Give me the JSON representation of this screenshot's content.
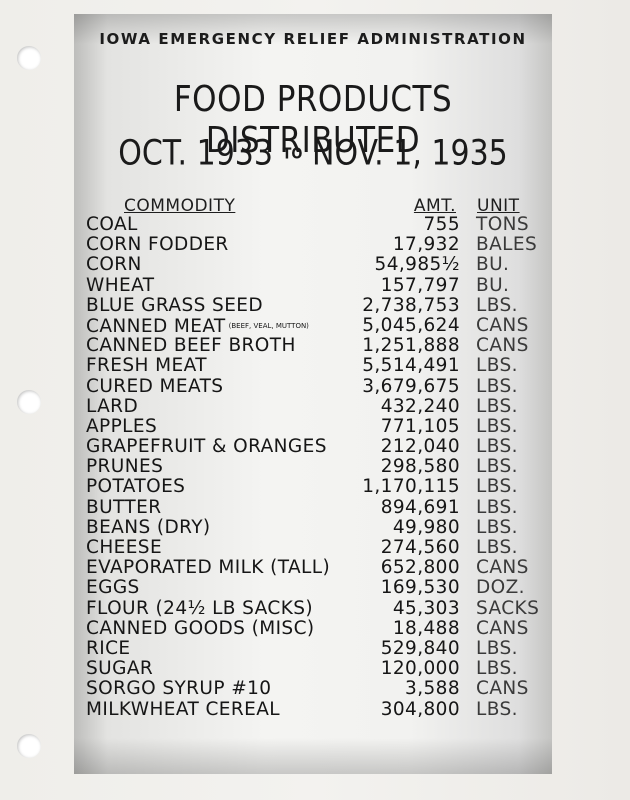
{
  "document": {
    "agency": "IOWA EMERGENCY RELIEF ADMINISTRATION",
    "title": "FOOD PRODUCTS DISTRIBUTED",
    "date_from": "OCT. 1933",
    "date_to_word": "TO",
    "date_to": "NOV. 1, 1935",
    "columns": {
      "commodity": "COMMODITY",
      "amount": "AMT.",
      "unit": "UNIT"
    },
    "rows": [
      {
        "commodity": "COAL",
        "note": "",
        "amount": "755",
        "unit": "TONS"
      },
      {
        "commodity": "CORN FODDER",
        "note": "",
        "amount": "17,932",
        "unit": "BALES"
      },
      {
        "commodity": "CORN",
        "note": "",
        "amount": "54,985½",
        "unit": "BU."
      },
      {
        "commodity": "WHEAT",
        "note": "",
        "amount": "157,797",
        "unit": "BU."
      },
      {
        "commodity": "BLUE GRASS SEED",
        "note": "",
        "amount": "2,738,753",
        "unit": "LBS."
      },
      {
        "commodity": "CANNED MEAT",
        "note": "(BEEF, VEAL, MUTTON)",
        "amount": "5,045,624",
        "unit": "CANS"
      },
      {
        "commodity": "CANNED BEEF BROTH",
        "note": "",
        "amount": "1,251,888",
        "unit": "CANS"
      },
      {
        "commodity": "FRESH MEAT",
        "note": "",
        "amount": "5,514,491",
        "unit": "LBS."
      },
      {
        "commodity": "CURED MEATS",
        "note": "",
        "amount": "3,679,675",
        "unit": "LBS."
      },
      {
        "commodity": "LARD",
        "note": "",
        "amount": "432,240",
        "unit": "LBS."
      },
      {
        "commodity": "APPLES",
        "note": "",
        "amount": "771,105",
        "unit": "LBS."
      },
      {
        "commodity": "GRAPEFRUIT & ORANGES",
        "note": "",
        "amount": "212,040",
        "unit": "LBS."
      },
      {
        "commodity": "PRUNES",
        "note": "",
        "amount": "298,580",
        "unit": "LBS."
      },
      {
        "commodity": "POTATOES",
        "note": "",
        "amount": "1,170,115",
        "unit": "LBS."
      },
      {
        "commodity": "BUTTER",
        "note": "",
        "amount": "894,691",
        "unit": "LBS."
      },
      {
        "commodity": "BEANS (DRY)",
        "note": "",
        "amount": "49,980",
        "unit": "LBS."
      },
      {
        "commodity": "CHEESE",
        "note": "",
        "amount": "274,560",
        "unit": "LBS."
      },
      {
        "commodity": "EVAPORATED MILK (TALL)",
        "note": "",
        "amount": "652,800",
        "unit": "CANS"
      },
      {
        "commodity": "EGGS",
        "note": "",
        "amount": "169,530",
        "unit": "DOZ."
      },
      {
        "commodity": "FLOUR (24½ LB SACKS)",
        "note": "",
        "amount": "45,303",
        "unit": "SACKS"
      },
      {
        "commodity": "CANNED GOODS (MISC)",
        "note": "",
        "amount": "18,488",
        "unit": "CANS"
      },
      {
        "commodity": "RICE",
        "note": "",
        "amount": "529,840",
        "unit": "LBS."
      },
      {
        "commodity": "SUGAR",
        "note": "",
        "amount": "120,000",
        "unit": "LBS."
      },
      {
        "commodity": "SORGO SYRUP #10",
        "note": "",
        "amount": "3,588",
        "unit": "CANS"
      },
      {
        "commodity": "MILKWHEAT CEREAL",
        "note": "",
        "amount": "304,800",
        "unit": "LBS."
      }
    ]
  }
}
